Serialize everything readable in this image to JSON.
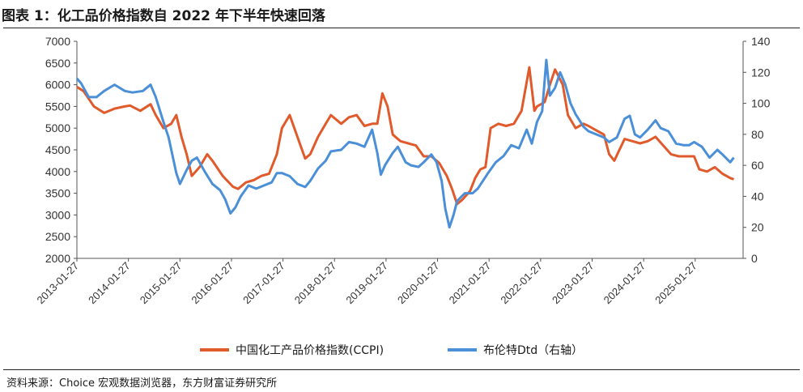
{
  "title": "图表 1：化工品价格指数自 2022 年下半年快速回落",
  "source": "资料来源：Choice 宏观数据浏览器，东方财富证券研究所",
  "colors": {
    "ccpi": "#e05a2b",
    "brent": "#4a8fd8",
    "axis": "#555555"
  },
  "chart_data": {
    "type": "line",
    "title": "",
    "x_ticks": [
      "2013-01-27",
      "2014-01-27",
      "2015-01-27",
      "2016-01-27",
      "2017-01-27",
      "2018-01-27",
      "2019-01-27",
      "2020-01-27",
      "2021-01-27",
      "2022-01-27",
      "2023-01-27",
      "2024-01-27",
      "2025-01-27"
    ],
    "y_left": {
      "min": 2000,
      "max": 7000,
      "step": 500,
      "ticks": [
        "7000",
        "6500",
        "6000",
        "5500",
        "5000",
        "4500",
        "4000",
        "3500",
        "3000",
        "2500",
        "2000"
      ]
    },
    "y_right": {
      "min": 0,
      "max": 140,
      "step": 20,
      "ticks": [
        "140",
        "120",
        "100",
        "80",
        "60",
        "40",
        "20",
        "0"
      ]
    },
    "x_range": [
      2013.07,
      2026.0
    ],
    "series": [
      {
        "name": "中国化工产品价格指数(CCPI)",
        "axis": "left",
        "color": "#e05a2b",
        "points": [
          [
            2013.07,
            5950
          ],
          [
            2013.2,
            5850
          ],
          [
            2013.4,
            5500
          ],
          [
            2013.6,
            5350
          ],
          [
            2013.8,
            5450
          ],
          [
            2014.0,
            5500
          ],
          [
            2014.1,
            5520
          ],
          [
            2014.3,
            5400
          ],
          [
            2014.5,
            5550
          ],
          [
            2014.6,
            5300
          ],
          [
            2014.75,
            5000
          ],
          [
            2014.9,
            5100
          ],
          [
            2015.0,
            5300
          ],
          [
            2015.1,
            4800
          ],
          [
            2015.2,
            4400
          ],
          [
            2015.3,
            3900
          ],
          [
            2015.45,
            4100
          ],
          [
            2015.6,
            4400
          ],
          [
            2015.7,
            4250
          ],
          [
            2015.9,
            3900
          ],
          [
            2016.1,
            3650
          ],
          [
            2016.2,
            3600
          ],
          [
            2016.35,
            3750
          ],
          [
            2016.5,
            3800
          ],
          [
            2016.65,
            3900
          ],
          [
            2016.8,
            3950
          ],
          [
            2016.95,
            4400
          ],
          [
            2017.05,
            5000
          ],
          [
            2017.2,
            5300
          ],
          [
            2017.35,
            4800
          ],
          [
            2017.5,
            4300
          ],
          [
            2017.6,
            4400
          ],
          [
            2017.75,
            4800
          ],
          [
            2017.9,
            5100
          ],
          [
            2018.0,
            5300
          ],
          [
            2018.2,
            5100
          ],
          [
            2018.35,
            5250
          ],
          [
            2018.5,
            5300
          ],
          [
            2018.65,
            5050
          ],
          [
            2018.8,
            5100
          ],
          [
            2018.9,
            5100
          ],
          [
            2019.0,
            5800
          ],
          [
            2019.1,
            5500
          ],
          [
            2019.2,
            4850
          ],
          [
            2019.35,
            4700
          ],
          [
            2019.5,
            4650
          ],
          [
            2019.65,
            4600
          ],
          [
            2019.8,
            4350
          ],
          [
            2019.95,
            4350
          ],
          [
            2020.1,
            4200
          ],
          [
            2020.25,
            3900
          ],
          [
            2020.35,
            3600
          ],
          [
            2020.45,
            3250
          ],
          [
            2020.55,
            3350
          ],
          [
            2020.7,
            3550
          ],
          [
            2020.8,
            3850
          ],
          [
            2020.9,
            4050
          ],
          [
            2021.0,
            4100
          ],
          [
            2021.1,
            5000
          ],
          [
            2021.25,
            5100
          ],
          [
            2021.4,
            5050
          ],
          [
            2021.55,
            5100
          ],
          [
            2021.7,
            5400
          ],
          [
            2021.85,
            6400
          ],
          [
            2021.95,
            5400
          ],
          [
            2022.0,
            5500
          ],
          [
            2022.15,
            5600
          ],
          [
            2022.25,
            6000
          ],
          [
            2022.35,
            6350
          ],
          [
            2022.5,
            6000
          ],
          [
            2022.6,
            5300
          ],
          [
            2022.75,
            5000
          ],
          [
            2022.9,
            5100
          ],
          [
            2023.0,
            5050
          ],
          [
            2023.15,
            4950
          ],
          [
            2023.3,
            4850
          ],
          [
            2023.4,
            4400
          ],
          [
            2023.5,
            4250
          ],
          [
            2023.6,
            4500
          ],
          [
            2023.7,
            4750
          ],
          [
            2023.85,
            4700
          ],
          [
            2024.0,
            4650
          ],
          [
            2024.15,
            4700
          ],
          [
            2024.3,
            4800
          ],
          [
            2024.45,
            4600
          ],
          [
            2024.6,
            4400
          ],
          [
            2024.75,
            4350
          ],
          [
            2024.9,
            4350
          ],
          [
            2025.05,
            4350
          ],
          [
            2025.15,
            4050
          ],
          [
            2025.3,
            4000
          ],
          [
            2025.45,
            4100
          ],
          [
            2025.6,
            3950
          ],
          [
            2025.75,
            3850
          ],
          [
            2025.82,
            3820
          ]
        ]
      },
      {
        "name": "布伦特Dtd（右轴）",
        "axis": "right",
        "color": "#4a8fd8",
        "points": [
          [
            2013.07,
            116
          ],
          [
            2013.15,
            113
          ],
          [
            2013.3,
            104
          ],
          [
            2013.45,
            104
          ],
          [
            2013.6,
            108
          ],
          [
            2013.8,
            112
          ],
          [
            2014.0,
            108
          ],
          [
            2014.15,
            107
          ],
          [
            2014.35,
            108
          ],
          [
            2014.5,
            112
          ],
          [
            2014.6,
            104
          ],
          [
            2014.75,
            88
          ],
          [
            2014.85,
            78
          ],
          [
            2015.0,
            55
          ],
          [
            2015.07,
            48
          ],
          [
            2015.2,
            57
          ],
          [
            2015.3,
            63
          ],
          [
            2015.4,
            65
          ],
          [
            2015.55,
            56
          ],
          [
            2015.7,
            48
          ],
          [
            2015.85,
            44
          ],
          [
            2015.95,
            38
          ],
          [
            2016.05,
            29
          ],
          [
            2016.15,
            33
          ],
          [
            2016.25,
            40
          ],
          [
            2016.4,
            47
          ],
          [
            2016.55,
            45
          ],
          [
            2016.7,
            47
          ],
          [
            2016.85,
            49
          ],
          [
            2016.95,
            55
          ],
          [
            2017.05,
            55
          ],
          [
            2017.2,
            53
          ],
          [
            2017.35,
            48
          ],
          [
            2017.5,
            46
          ],
          [
            2017.6,
            50
          ],
          [
            2017.75,
            58
          ],
          [
            2017.9,
            63
          ],
          [
            2018.0,
            69
          ],
          [
            2018.2,
            70
          ],
          [
            2018.35,
            75
          ],
          [
            2018.5,
            74
          ],
          [
            2018.65,
            72
          ],
          [
            2018.8,
            83
          ],
          [
            2018.9,
            68
          ],
          [
            2018.97,
            54
          ],
          [
            2019.05,
            60
          ],
          [
            2019.2,
            68
          ],
          [
            2019.3,
            72
          ],
          [
            2019.45,
            62
          ],
          [
            2019.55,
            60
          ],
          [
            2019.7,
            59
          ],
          [
            2019.8,
            62
          ],
          [
            2019.95,
            67
          ],
          [
            2020.05,
            62
          ],
          [
            2020.15,
            50
          ],
          [
            2020.22,
            32
          ],
          [
            2020.3,
            20
          ],
          [
            2020.38,
            28
          ],
          [
            2020.45,
            37
          ],
          [
            2020.6,
            42
          ],
          [
            2020.75,
            42
          ],
          [
            2020.85,
            45
          ],
          [
            2020.95,
            50
          ],
          [
            2021.05,
            55
          ],
          [
            2021.2,
            62
          ],
          [
            2021.35,
            66
          ],
          [
            2021.5,
            73
          ],
          [
            2021.65,
            71
          ],
          [
            2021.8,
            83
          ],
          [
            2021.9,
            74
          ],
          [
            2022.0,
            88
          ],
          [
            2022.1,
            95
          ],
          [
            2022.18,
            128
          ],
          [
            2022.25,
            105
          ],
          [
            2022.35,
            110
          ],
          [
            2022.45,
            120
          ],
          [
            2022.55,
            112
          ],
          [
            2022.65,
            100
          ],
          [
            2022.75,
            93
          ],
          [
            2022.9,
            85
          ],
          [
            2023.0,
            82
          ],
          [
            2023.15,
            80
          ],
          [
            2023.3,
            78
          ],
          [
            2023.4,
            75
          ],
          [
            2023.55,
            78
          ],
          [
            2023.7,
            90
          ],
          [
            2023.8,
            92
          ],
          [
            2023.9,
            80
          ],
          [
            2024.0,
            78
          ],
          [
            2024.15,
            83
          ],
          [
            2024.3,
            89
          ],
          [
            2024.4,
            84
          ],
          [
            2024.55,
            82
          ],
          [
            2024.7,
            74
          ],
          [
            2024.85,
            73
          ],
          [
            2024.95,
            73
          ],
          [
            2025.05,
            75
          ],
          [
            2025.2,
            72
          ],
          [
            2025.35,
            65
          ],
          [
            2025.5,
            70
          ],
          [
            2025.6,
            67
          ],
          [
            2025.75,
            62
          ],
          [
            2025.82,
            65
          ]
        ]
      }
    ],
    "legend": {
      "placement": "bottom",
      "entries": [
        "中国化工产品价格指数(CCPI)",
        "布伦特Dtd（右轴）"
      ]
    }
  }
}
